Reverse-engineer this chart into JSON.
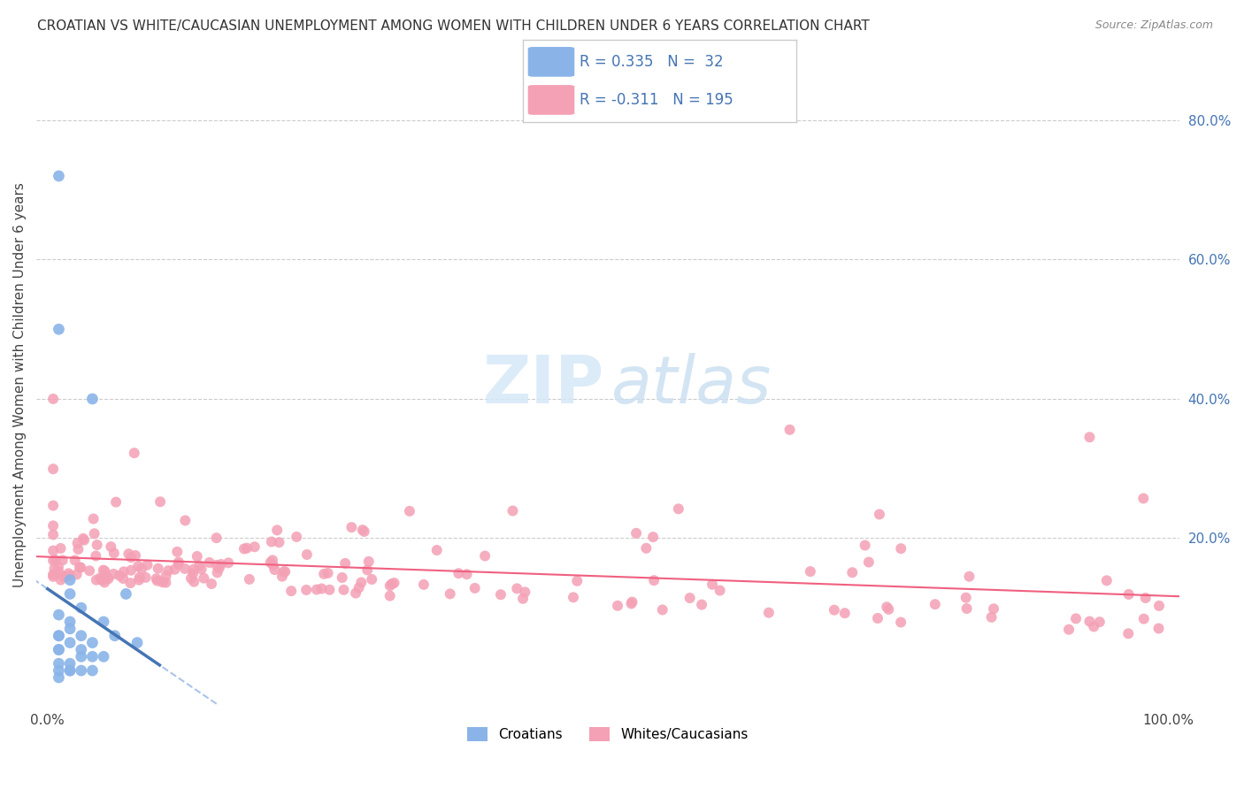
{
  "title": "CROATIAN VS WHITE/CAUCASIAN UNEMPLOYMENT AMONG WOMEN WITH CHILDREN UNDER 6 YEARS CORRELATION CHART",
  "source": "Source: ZipAtlas.com",
  "ylabel": "Unemployment Among Women with Children Under 6 years",
  "legend_blue_r": "R = 0.335",
  "legend_blue_n": "N =  32",
  "legend_pink_r": "R = -0.311",
  "legend_pink_n": "N = 195",
  "blue_label": "Croatians",
  "pink_label": "Whites/Caucasians",
  "blue_color": "#8ab4e8",
  "pink_color": "#f4a0b5",
  "blue_line_color": "#4575b4",
  "pink_line_color": "#f06080",
  "dashed_line_color": "#aac4e8",
  "bg_color": "#ffffff",
  "blue_x": [
    0.01,
    0.01,
    0.01,
    0.01,
    0.01,
    0.01,
    0.01,
    0.02,
    0.02,
    0.02,
    0.02,
    0.02,
    0.03,
    0.03,
    0.03,
    0.04,
    0.04,
    0.05,
    0.05,
    0.06,
    0.07,
    0.08,
    0.02,
    0.01,
    0.01,
    0.01,
    0.02,
    0.03,
    0.04,
    0.02,
    0.03,
    0.04
  ],
  "blue_y": [
    0.72,
    0.5,
    0.06,
    0.04,
    0.02,
    0.01,
    0.0,
    0.12,
    0.08,
    0.05,
    0.02,
    0.01,
    0.1,
    0.06,
    0.03,
    0.4,
    0.05,
    0.08,
    0.03,
    0.06,
    0.12,
    0.05,
    0.14,
    0.09,
    0.06,
    0.04,
    0.07,
    0.04,
    0.03,
    0.01,
    0.01,
    0.01
  ]
}
